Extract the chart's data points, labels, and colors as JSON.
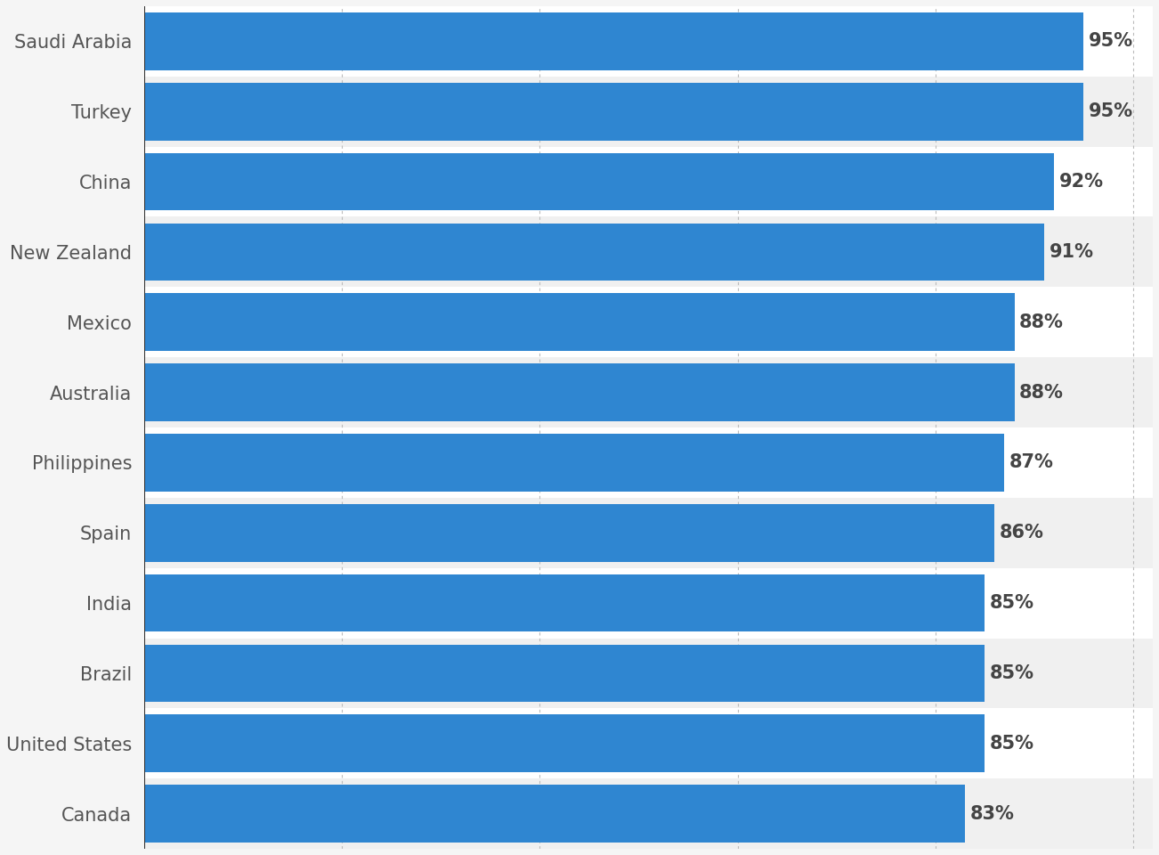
{
  "countries": [
    "Saudi Arabia",
    "Turkey",
    "China",
    "New Zealand",
    "Mexico",
    "Australia",
    "Philippines",
    "Spain",
    "India",
    "Brazil",
    "United States",
    "Canada"
  ],
  "values": [
    95,
    95,
    92,
    91,
    88,
    88,
    87,
    86,
    85,
    85,
    85,
    83
  ],
  "bar_color": "#2f86d1",
  "background_color": "#f5f5f5",
  "row_color_odd": "#ffffff",
  "row_color_even": "#f0f0f0",
  "label_color": "#555555",
  "value_label_color": "#444444",
  "grid_color": "#bbbbbb",
  "xlim": [
    0,
    102
  ],
  "bar_height": 0.82,
  "value_label_fontsize": 15,
  "ylabel_fontsize": 15,
  "grid_xticks": [
    20,
    40,
    60,
    80,
    100
  ]
}
